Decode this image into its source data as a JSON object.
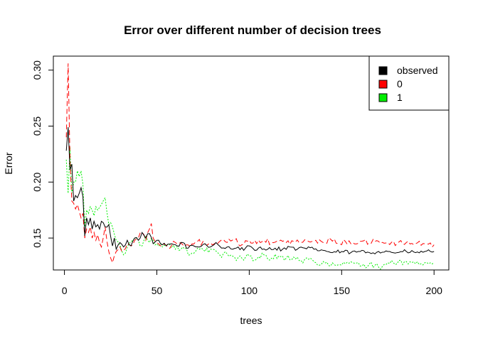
{
  "chart_data": {
    "type": "line",
    "title": "Error over different number of decision trees",
    "xlabel": "trees",
    "ylabel": "Error",
    "xlim": [
      -6,
      208
    ],
    "ylim": [
      0.1215,
      0.3125
    ],
    "xticks": [
      0,
      50,
      100,
      150,
      200
    ],
    "yticks": [
      0.15,
      0.2,
      0.25,
      0.3
    ],
    "xtick_labels": [
      "0",
      "50",
      "100",
      "150",
      "200"
    ],
    "ytick_labels": [
      "0.15",
      "0.20",
      "0.25",
      "0.30"
    ],
    "legend_position": "top-right",
    "grid": false,
    "series": [
      {
        "name": "observed",
        "color": "#000000",
        "dash": "solid",
        "anchors": [
          [
            1,
            0.228
          ],
          [
            2,
            0.249
          ],
          [
            3,
            0.211
          ],
          [
            4,
            0.216
          ],
          [
            5,
            0.183
          ],
          [
            6,
            0.188
          ],
          [
            7,
            0.186
          ],
          [
            8,
            0.19
          ],
          [
            9,
            0.195
          ],
          [
            10,
            0.187
          ],
          [
            11,
            0.152
          ],
          [
            12,
            0.168
          ],
          [
            13,
            0.162
          ],
          [
            14,
            0.168
          ],
          [
            15,
            0.158
          ],
          [
            16,
            0.165
          ],
          [
            17,
            0.16
          ],
          [
            18,
            0.162
          ],
          [
            19,
            0.158
          ],
          [
            20,
            0.165
          ],
          [
            22,
            0.16
          ],
          [
            24,
            0.162
          ],
          [
            26,
            0.143
          ],
          [
            27,
            0.15
          ],
          [
            28,
            0.14
          ],
          [
            30,
            0.146
          ],
          [
            32,
            0.142
          ],
          [
            34,
            0.148
          ],
          [
            36,
            0.143
          ],
          [
            38,
            0.15
          ],
          [
            40,
            0.148
          ],
          [
            42,
            0.155
          ],
          [
            44,
            0.15
          ],
          [
            46,
            0.154
          ],
          [
            48,
            0.145
          ],
          [
            50,
            0.148
          ],
          [
            52,
            0.145
          ],
          [
            55,
            0.143
          ],
          [
            58,
            0.145
          ],
          [
            61,
            0.143
          ],
          [
            64,
            0.146
          ],
          [
            67,
            0.141
          ],
          [
            70,
            0.143
          ],
          [
            73,
            0.142
          ],
          [
            76,
            0.145
          ],
          [
            79,
            0.142
          ],
          [
            82,
            0.146
          ],
          [
            85,
            0.141
          ],
          [
            88,
            0.142
          ],
          [
            91,
            0.14
          ],
          [
            94,
            0.142
          ],
          [
            97,
            0.139
          ],
          [
            100,
            0.143
          ],
          [
            103,
            0.139
          ],
          [
            106,
            0.142
          ],
          [
            110,
            0.14
          ],
          [
            114,
            0.141
          ],
          [
            118,
            0.14
          ],
          [
            122,
            0.142
          ],
          [
            126,
            0.14
          ],
          [
            130,
            0.141
          ],
          [
            135,
            0.14
          ],
          [
            140,
            0.139
          ],
          [
            145,
            0.137
          ],
          [
            150,
            0.138
          ],
          [
            155,
            0.137
          ],
          [
            160,
            0.138
          ],
          [
            165,
            0.137
          ],
          [
            170,
            0.138
          ],
          [
            175,
            0.138
          ],
          [
            180,
            0.137
          ],
          [
            185,
            0.138
          ],
          [
            190,
            0.137
          ],
          [
            195,
            0.138
          ],
          [
            200,
            0.138
          ]
        ],
        "wiggle": 0.0018
      },
      {
        "name": "0",
        "color": "#ff0000",
        "dash": "7,4",
        "anchors": [
          [
            1,
            0.24
          ],
          [
            2,
            0.306
          ],
          [
            3,
            0.22
          ],
          [
            4,
            0.183
          ],
          [
            5,
            0.181
          ],
          [
            6,
            0.176
          ],
          [
            7,
            0.18
          ],
          [
            8,
            0.174
          ],
          [
            9,
            0.168
          ],
          [
            10,
            0.172
          ],
          [
            11,
            0.15
          ],
          [
            12,
            0.158
          ],
          [
            13,
            0.155
          ],
          [
            14,
            0.16
          ],
          [
            15,
            0.15
          ],
          [
            16,
            0.155
          ],
          [
            17,
            0.148
          ],
          [
            18,
            0.153
          ],
          [
            20,
            0.142
          ],
          [
            22,
            0.16
          ],
          [
            24,
            0.138
          ],
          [
            26,
            0.128
          ],
          [
            28,
            0.138
          ],
          [
            30,
            0.142
          ],
          [
            32,
            0.139
          ],
          [
            34,
            0.145
          ],
          [
            36,
            0.143
          ],
          [
            38,
            0.148
          ],
          [
            40,
            0.15
          ],
          [
            42,
            0.155
          ],
          [
            44,
            0.148
          ],
          [
            46,
            0.158
          ],
          [
            47,
            0.163
          ],
          [
            48,
            0.15
          ],
          [
            50,
            0.146
          ],
          [
            53,
            0.145
          ],
          [
            56,
            0.142
          ],
          [
            60,
            0.146
          ],
          [
            64,
            0.144
          ],
          [
            68,
            0.142
          ],
          [
            72,
            0.147
          ],
          [
            76,
            0.145
          ],
          [
            80,
            0.144
          ],
          [
            84,
            0.147
          ],
          [
            88,
            0.146
          ],
          [
            92,
            0.148
          ],
          [
            96,
            0.144
          ],
          [
            100,
            0.148
          ],
          [
            104,
            0.145
          ],
          [
            108,
            0.148
          ],
          [
            112,
            0.146
          ],
          [
            116,
            0.147
          ],
          [
            120,
            0.146
          ],
          [
            124,
            0.147
          ],
          [
            128,
            0.146
          ],
          [
            132,
            0.147
          ],
          [
            136,
            0.148
          ],
          [
            140,
            0.146
          ],
          [
            144,
            0.149
          ],
          [
            148,
            0.145
          ],
          [
            152,
            0.147
          ],
          [
            156,
            0.146
          ],
          [
            160,
            0.147
          ],
          [
            165,
            0.146
          ],
          [
            170,
            0.147
          ],
          [
            175,
            0.146
          ],
          [
            180,
            0.145
          ],
          [
            185,
            0.146
          ],
          [
            190,
            0.145
          ],
          [
            195,
            0.145
          ],
          [
            200,
            0.144
          ]
        ],
        "wiggle": 0.0025
      },
      {
        "name": "1",
        "color": "#00ee00",
        "dash": "2,2",
        "anchors": [
          [
            1,
            0.22
          ],
          [
            2,
            0.19
          ],
          [
            3,
            0.231
          ],
          [
            4,
            0.19
          ],
          [
            5,
            0.2
          ],
          [
            6,
            0.2
          ],
          [
            7,
            0.21
          ],
          [
            8,
            0.205
          ],
          [
            9,
            0.21
          ],
          [
            10,
            0.198
          ],
          [
            11,
            0.16
          ],
          [
            12,
            0.175
          ],
          [
            13,
            0.172
          ],
          [
            14,
            0.178
          ],
          [
            15,
            0.175
          ],
          [
            16,
            0.17
          ],
          [
            17,
            0.178
          ],
          [
            18,
            0.175
          ],
          [
            20,
            0.18
          ],
          [
            22,
            0.186
          ],
          [
            24,
            0.162
          ],
          [
            26,
            0.16
          ],
          [
            28,
            0.148
          ],
          [
            30,
            0.144
          ],
          [
            32,
            0.135
          ],
          [
            34,
            0.142
          ],
          [
            36,
            0.147
          ],
          [
            38,
            0.15
          ],
          [
            40,
            0.148
          ],
          [
            42,
            0.143
          ],
          [
            44,
            0.152
          ],
          [
            46,
            0.146
          ],
          [
            48,
            0.148
          ],
          [
            50,
            0.145
          ],
          [
            53,
            0.142
          ],
          [
            56,
            0.144
          ],
          [
            60,
            0.14
          ],
          [
            64,
            0.142
          ],
          [
            68,
            0.135
          ],
          [
            72,
            0.141
          ],
          [
            76,
            0.138
          ],
          [
            80,
            0.14
          ],
          [
            84,
            0.135
          ],
          [
            88,
            0.136
          ],
          [
            92,
            0.133
          ],
          [
            96,
            0.132
          ],
          [
            100,
            0.134
          ],
          [
            104,
            0.131
          ],
          [
            108,
            0.135
          ],
          [
            112,
            0.132
          ],
          [
            116,
            0.134
          ],
          [
            120,
            0.132
          ],
          [
            124,
            0.133
          ],
          [
            128,
            0.13
          ],
          [
            132,
            0.131
          ],
          [
            136,
            0.128
          ],
          [
            140,
            0.129
          ],
          [
            144,
            0.125
          ],
          [
            148,
            0.126
          ],
          [
            152,
            0.127
          ],
          [
            156,
            0.128
          ],
          [
            160,
            0.125
          ],
          [
            165,
            0.127
          ],
          [
            170,
            0.124
          ],
          [
            175,
            0.128
          ],
          [
            180,
            0.127
          ],
          [
            185,
            0.129
          ],
          [
            190,
            0.127
          ],
          [
            195,
            0.128
          ],
          [
            200,
            0.128
          ]
        ],
        "wiggle": 0.0028
      }
    ]
  }
}
